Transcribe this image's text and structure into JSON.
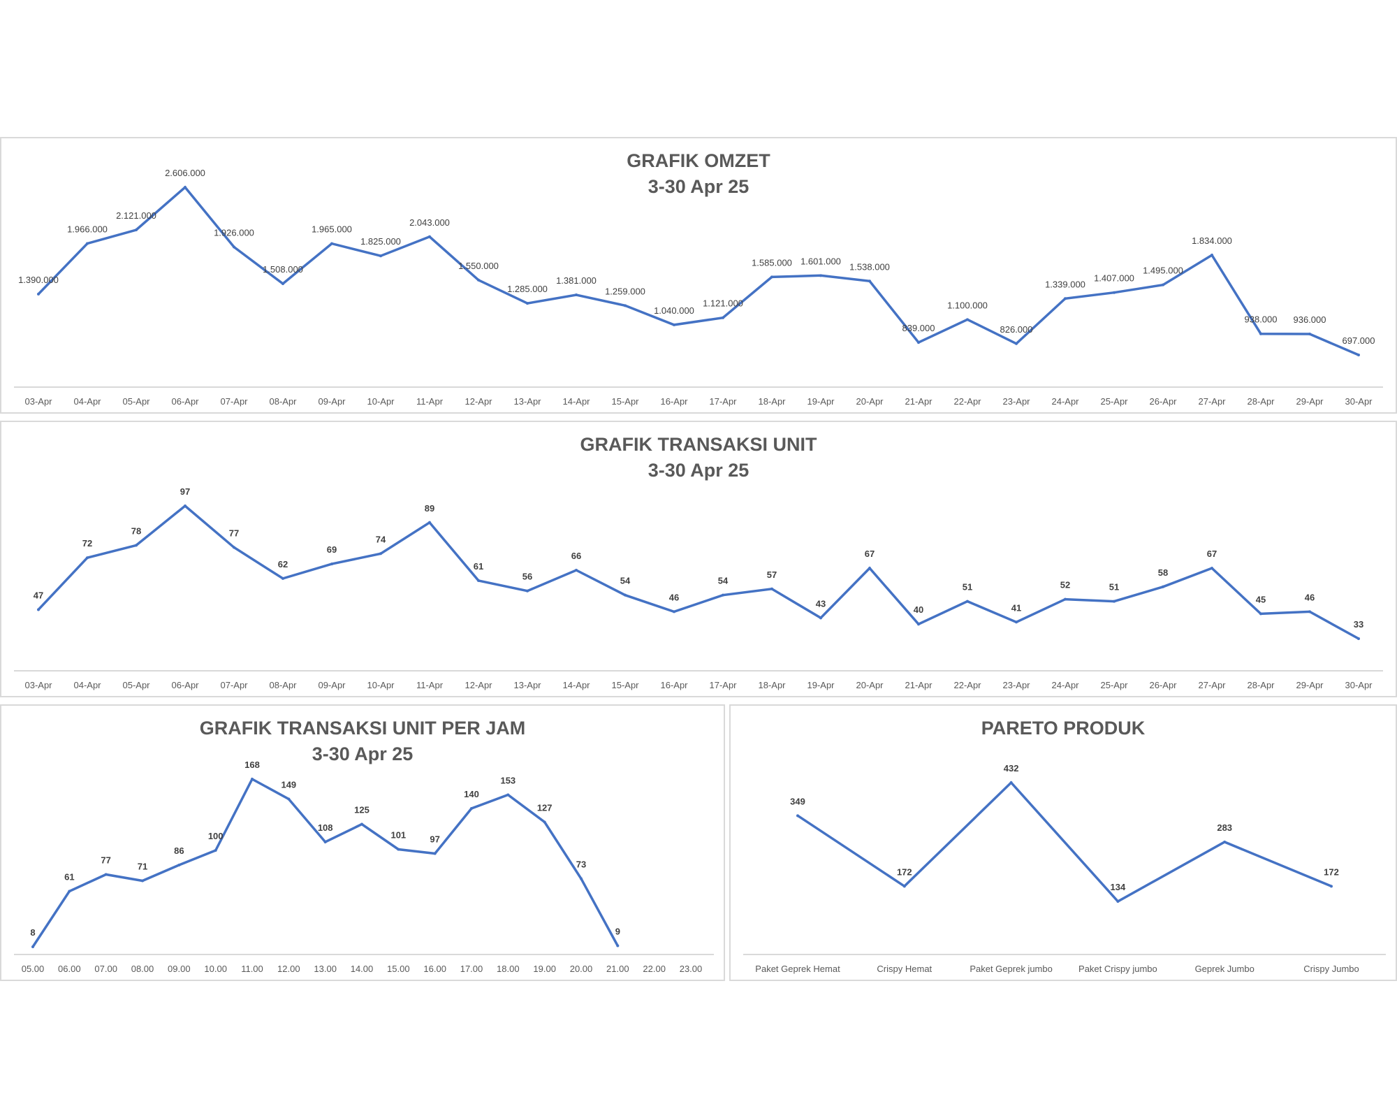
{
  "colors": {
    "line": "#4472c4",
    "axis": "#d9d9d9",
    "text": "#595959",
    "label": "#404040"
  },
  "chart_data": [
    {
      "id": "omzet",
      "type": "line",
      "title": "GRAFIK OMZET",
      "subtitle": "3-30 Apr 25",
      "categories": [
        "03-Apr",
        "04-Apr",
        "05-Apr",
        "06-Apr",
        "07-Apr",
        "08-Apr",
        "09-Apr",
        "10-Apr",
        "11-Apr",
        "12-Apr",
        "13-Apr",
        "14-Apr",
        "15-Apr",
        "16-Apr",
        "17-Apr",
        "18-Apr",
        "19-Apr",
        "20-Apr",
        "21-Apr",
        "22-Apr",
        "23-Apr",
        "24-Apr",
        "25-Apr",
        "26-Apr",
        "27-Apr",
        "28-Apr",
        "29-Apr",
        "30-Apr"
      ],
      "values": [
        1390000,
        1966000,
        2121000,
        2606000,
        1926000,
        1508000,
        1965000,
        1825000,
        2043000,
        1550000,
        1285000,
        1381000,
        1259000,
        1040000,
        1121000,
        1585000,
        1601000,
        1538000,
        839000,
        1100000,
        826000,
        1339000,
        1407000,
        1495000,
        1834000,
        938000,
        936000,
        697000
      ],
      "data_labels": [
        "1.390.000",
        "1.966.000",
        "2.121.000",
        "2.606.000",
        "1.926.000",
        "1.508.000",
        "1.965.000",
        "1.825.000",
        "2.043.000",
        "1.550.000",
        "1.285.000",
        "1.381.000",
        "1.259.000",
        "1.040.000",
        "1.121.000",
        "1.585.000",
        "1.601.000",
        "1.538.000",
        "839.000",
        "1.100.000",
        "826.000",
        "1.339.000",
        "1.407.000",
        "1.495.000",
        "1.834.000",
        "938.000",
        "936.000",
        "697.000"
      ],
      "label_style": "normal",
      "ylim": [
        0,
        3000000
      ]
    },
    {
      "id": "unit",
      "type": "line",
      "title": "GRAFIK TRANSAKSI UNIT",
      "subtitle": "3-30 Apr 25",
      "categories": [
        "03-Apr",
        "04-Apr",
        "05-Apr",
        "06-Apr",
        "07-Apr",
        "08-Apr",
        "09-Apr",
        "10-Apr",
        "11-Apr",
        "12-Apr",
        "13-Apr",
        "14-Apr",
        "15-Apr",
        "16-Apr",
        "17-Apr",
        "18-Apr",
        "19-Apr",
        "20-Apr",
        "21-Apr",
        "22-Apr",
        "23-Apr",
        "24-Apr",
        "25-Apr",
        "26-Apr",
        "27-Apr",
        "28-Apr",
        "29-Apr",
        "30-Apr"
      ],
      "values": [
        47,
        72,
        78,
        97,
        77,
        62,
        69,
        74,
        89,
        61,
        56,
        66,
        54,
        46,
        54,
        57,
        43,
        67,
        40,
        51,
        41,
        52,
        51,
        58,
        67,
        45,
        46,
        33
      ],
      "data_labels": [
        "47",
        "72",
        "78",
        "97",
        "77",
        "62",
        "69",
        "74",
        "89",
        "61",
        "56",
        "66",
        "54",
        "46",
        "54",
        "57",
        "43",
        "67",
        "40",
        "51",
        "41",
        "52",
        "51",
        "58",
        "67",
        "45",
        "46",
        "33"
      ],
      "label_style": "bold",
      "ylim": [
        0,
        100
      ]
    },
    {
      "id": "jam",
      "type": "line",
      "title": "GRAFIK TRANSAKSI UNIT PER JAM",
      "subtitle": "3-30 Apr 25",
      "categories": [
        "05.00",
        "06.00",
        "07.00",
        "08.00",
        "09.00",
        "10.00",
        "11.00",
        "12.00",
        "13.00",
        "14.00",
        "15.00",
        "16.00",
        "17.00",
        "18.00",
        "19.00",
        "20.00",
        "21.00",
        "22.00",
        "23.00"
      ],
      "values": [
        8,
        61,
        77,
        71,
        86,
        100,
        168,
        149,
        108,
        125,
        101,
        97,
        140,
        153,
        127,
        73,
        9,
        null,
        null
      ],
      "data_labels": [
        "8",
        "61",
        "77",
        "71",
        "86",
        "100",
        "168",
        "149",
        "108",
        "125",
        "101",
        "97",
        "140",
        "153",
        "127",
        "73",
        "9",
        "",
        ""
      ],
      "label_style": "bold",
      "ylim": [
        0,
        180
      ]
    },
    {
      "id": "pareto",
      "type": "line",
      "title": "PARETO PRODUK",
      "subtitle": "",
      "categories": [
        "Paket Geprek Hemat",
        "Crispy Hemat",
        "Paket Geprek jumbo",
        "Paket Crispy jumbo",
        "Geprek Jumbo",
        "Crispy Jumbo"
      ],
      "values": [
        349,
        172,
        432,
        134,
        283,
        172
      ],
      "data_labels": [
        "349",
        "172",
        "432",
        "134",
        "283",
        "172"
      ],
      "label_style": "bold",
      "ylim": [
        0,
        470
      ]
    }
  ]
}
